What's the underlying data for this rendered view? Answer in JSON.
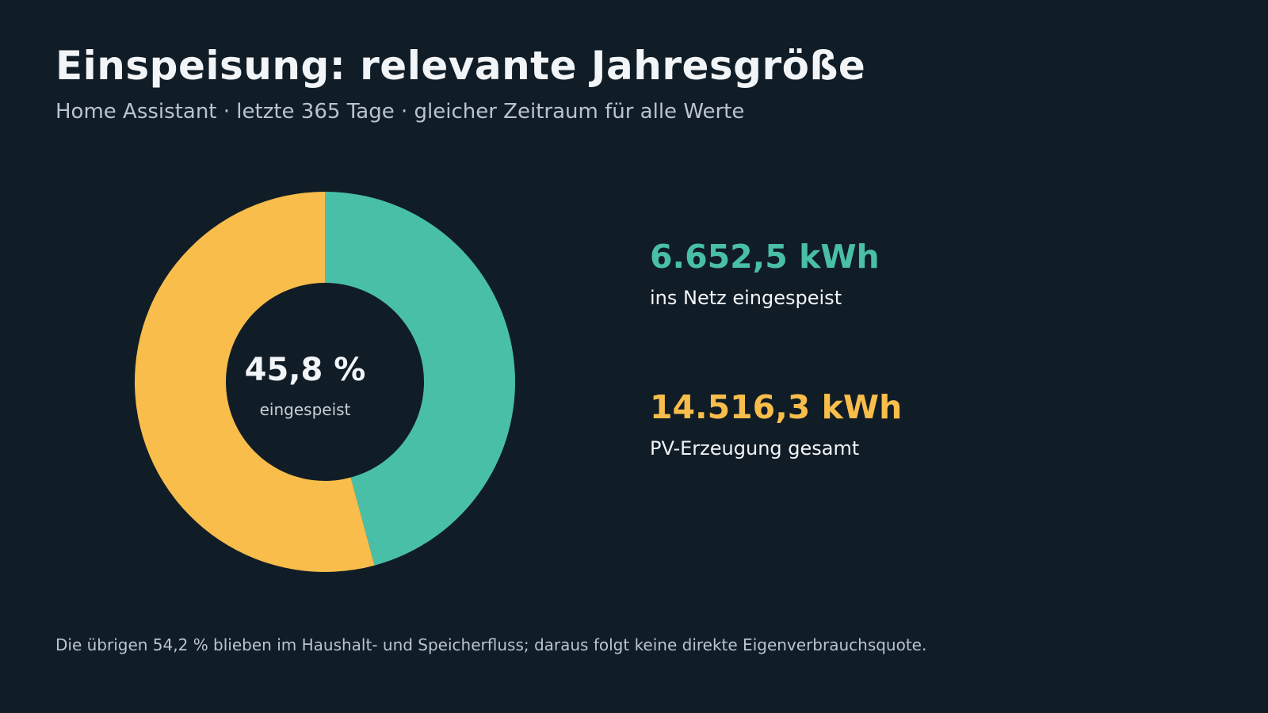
{
  "header": {
    "title": "Einspeisung: relevante Jahresgröße",
    "subtitle": "Home Assistant · letzte 365 Tage · gleicher Zeitraum für alle Werte"
  },
  "chart_data": {
    "type": "pie",
    "categories": [
      "ins Netz eingespeist",
      "übrige"
    ],
    "values": [
      45.8,
      54.2
    ],
    "colors": [
      "#49bfa8",
      "#f8bd4b"
    ],
    "donut": true,
    "center_value": "45,8 %",
    "center_caption": "eingespeist",
    "legend": "none"
  },
  "stats": [
    {
      "value": "6.652,5 kWh",
      "label": "ins Netz eingespeist",
      "color": "#49bfa8"
    },
    {
      "value": "14.516,3 kWh",
      "label": "PV-Erzeugung gesamt",
      "color": "#f8bd4b"
    }
  ],
  "footnote": "Die übrigen 54,2 % blieben im Haushalt- und Speicherfluss; daraus folgt keine direkte Eigenverbrauchsquote."
}
